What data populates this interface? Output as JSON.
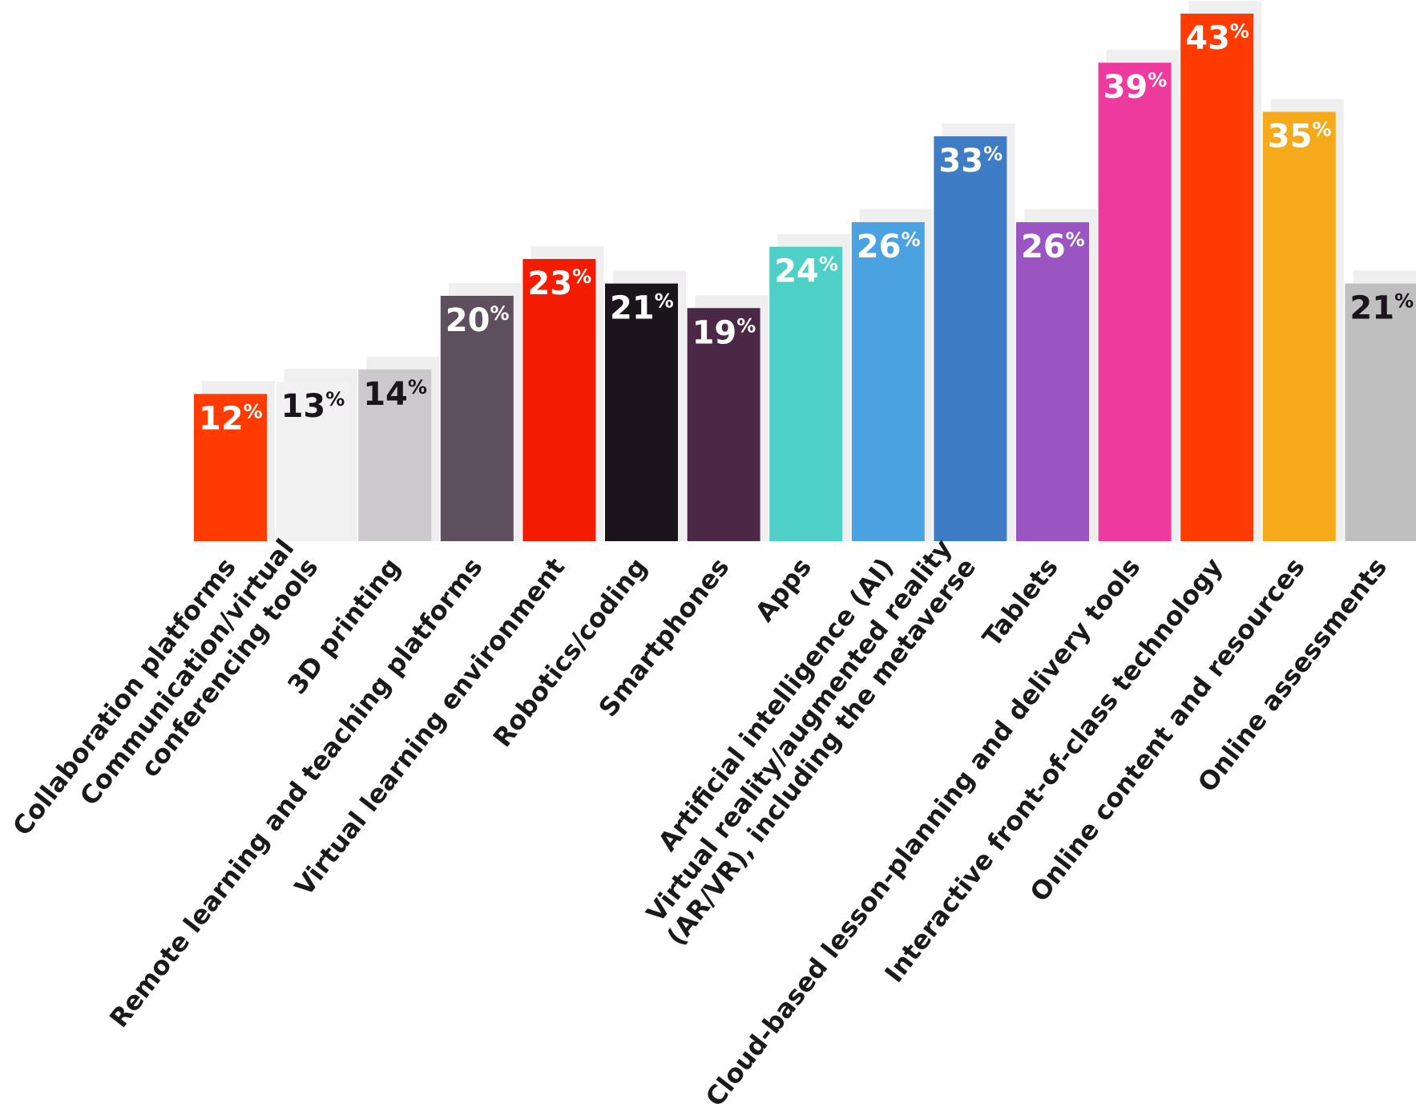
{
  "chart_data": {
    "type": "bar",
    "ylim": [
      0,
      43
    ],
    "value_suffix": "%",
    "categories": [
      [
        "Collaboration platforms"
      ],
      [
        "Communication/virtual",
        "conferencing tools"
      ],
      [
        "3D printing"
      ],
      [
        "Remote learning and teaching platforms"
      ],
      [
        "Virtual learning environment"
      ],
      [
        "Robotics/coding"
      ],
      [
        "Smartphones"
      ],
      [
        "Apps"
      ],
      [
        "Artificial intelligence (AI)"
      ],
      [
        "Virtual reality/augmented reality",
        "(AR/VR), including the metaverse"
      ],
      [
        "Tablets"
      ],
      [
        "Cloud-based lesson-planning and delivery tools"
      ],
      [
        "Interactive front-of-class technology"
      ],
      [
        "Online content and resources"
      ],
      [
        "Online assessments"
      ]
    ],
    "values": [
      12,
      13,
      14,
      20,
      23,
      21,
      19,
      24,
      26,
      33,
      26,
      39,
      43,
      35,
      21
    ],
    "colors": [
      "#ff3b00",
      "#f1f1f1",
      "#cdc8cd",
      "#5d4f5e",
      "#f41c00",
      "#1b141c",
      "#4a2846",
      "#4fd0c6",
      "#4aa3e0",
      "#3f7cc6",
      "#9a55c3",
      "#ee3a9e",
      "#ff3b00",
      "#f5aa1c",
      "#bfbfbf"
    ],
    "label_colors": [
      "#ffffff",
      "#1b141c",
      "#1b141c",
      "#ffffff",
      "#ffffff",
      "#ffffff",
      "#ffffff",
      "#ffffff",
      "#ffffff",
      "#ffffff",
      "#ffffff",
      "#ffffff",
      "#ffffff",
      "#ffffff",
      "#1b141c"
    ],
    "shadow_color": "#efefef",
    "grid": false,
    "legend": "none"
  }
}
